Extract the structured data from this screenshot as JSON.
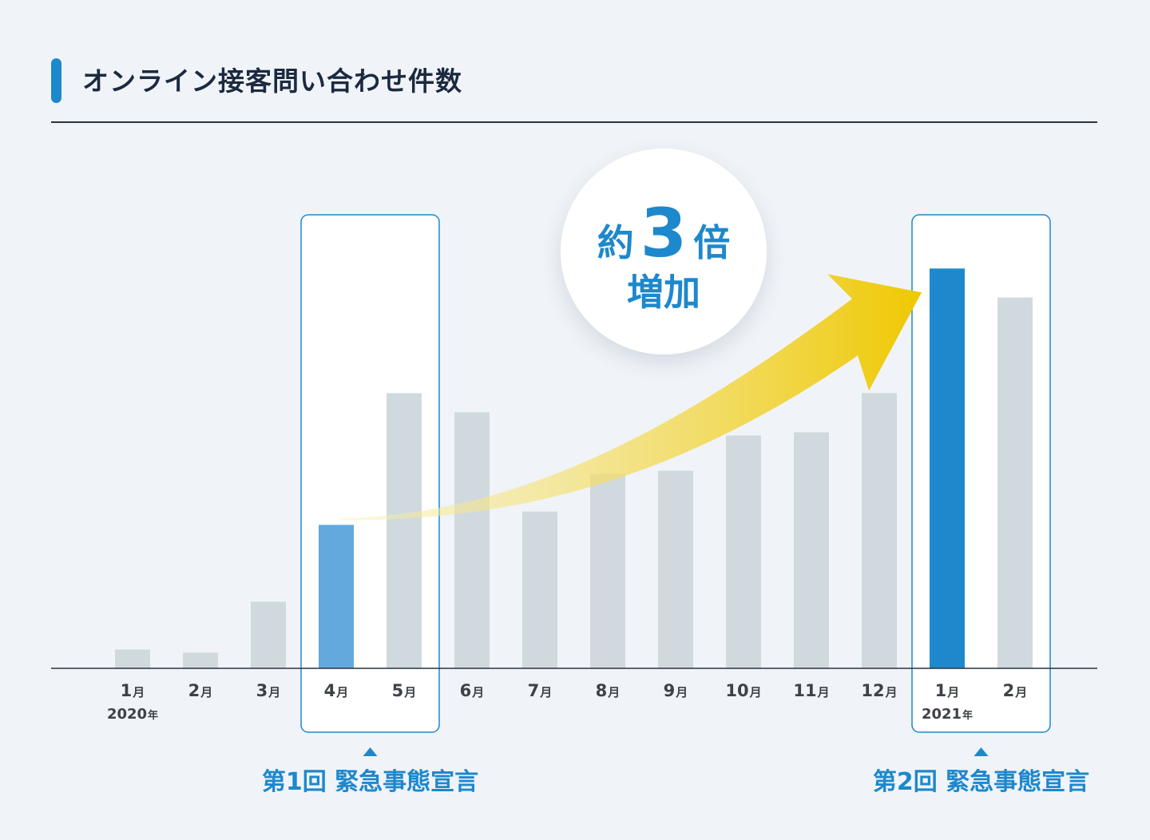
{
  "title": "オンライン接客問い合わせ件数",
  "colors": {
    "accent": "#1e88cc",
    "bar_default": "#d0d9de",
    "bar_highlight_light": "#64a9dd",
    "bar_highlight_strong": "#1e88cc",
    "arrow_start": "#f9efb2",
    "arrow_end": "#efc800",
    "background": "#f0f4f8"
  },
  "chart_data": {
    "type": "bar",
    "categories": [
      "1月",
      "2月",
      "3月",
      "4月",
      "5月",
      "6月",
      "7月",
      "8月",
      "9月",
      "10月",
      "11月",
      "12月",
      "1月",
      "2月"
    ],
    "category_labels": [
      {
        "num": "1",
        "unit": "月"
      },
      {
        "num": "2",
        "unit": "月"
      },
      {
        "num": "3",
        "unit": "月"
      },
      {
        "num": "4",
        "unit": "月"
      },
      {
        "num": "5",
        "unit": "月"
      },
      {
        "num": "6",
        "unit": "月"
      },
      {
        "num": "7",
        "unit": "月"
      },
      {
        "num": "8",
        "unit": "月"
      },
      {
        "num": "9",
        "unit": "月"
      },
      {
        "num": "10",
        "unit": "月"
      },
      {
        "num": "11",
        "unit": "月"
      },
      {
        "num": "12",
        "unit": "月"
      },
      {
        "num": "1",
        "unit": "月"
      },
      {
        "num": "2",
        "unit": "月"
      }
    ],
    "year_labels": [
      {
        "index": 0,
        "year": "2020",
        "unit": "年"
      },
      {
        "index": 12,
        "year": "2021",
        "unit": "年"
      }
    ],
    "values": [
      4.8,
      4.0,
      17.0,
      36.6,
      70.2,
      65.3,
      40.0,
      49.6,
      50.4,
      59.4,
      60.2,
      70.2,
      102.0,
      94.6
    ],
    "highlight": {
      "3": "light",
      "12": "strong"
    },
    "ylim": [
      0,
      110
    ],
    "yaxis_visible": false,
    "grid": false,
    "legend": "none",
    "periods": [
      {
        "label": "第1回 緊急事態宣言",
        "from_index": 3,
        "to_index": 4
      },
      {
        "label": "第2回 緊急事態宣言",
        "from_index": 12,
        "to_index": 13
      }
    ],
    "annotation": {
      "line1_prefix": "約",
      "line1_value": "3",
      "line1_suffix": "倍",
      "line2": "増加",
      "arrow_from_index": 3,
      "arrow_to_index": 12
    }
  }
}
